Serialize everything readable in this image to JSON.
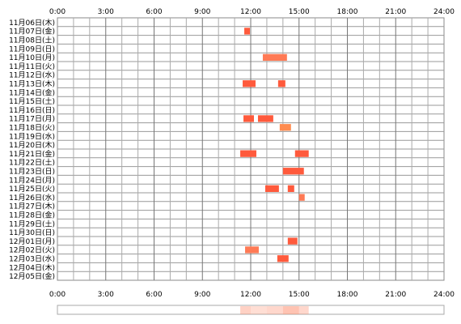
{
  "chart_data": {
    "type": "timeline",
    "x_range": [
      "0:00",
      "24:00"
    ],
    "x_ticks": [
      "0:00",
      "3:00",
      "6:00",
      "9:00",
      "12:00",
      "15:00",
      "18:00",
      "21:00",
      "24:00"
    ],
    "rows": [
      "11月06日(木)",
      "11月07日(金)",
      "11月08日(土)",
      "11月09日(日)",
      "11月10日(月)",
      "11月11日(火)",
      "11月12日(水)",
      "11月13日(木)",
      "11月14日(金)",
      "11月15日(土)",
      "11月16日(日)",
      "11月17日(月)",
      "11月18日(火)",
      "11月19日(水)",
      "11月20日(木)",
      "11月21日(金)",
      "11月22日(土)",
      "11月23日(日)",
      "11月24日(月)",
      "11月25日(火)",
      "11月26日(水)",
      "11月27日(木)",
      "11月28日(金)",
      "11月29日(土)",
      "11月30日(日)",
      "12月01日(月)",
      "12月02日(火)",
      "12月03日(水)",
      "12月04日(木)",
      "12月05日(金)"
    ],
    "grid": true,
    "bar_colors": [
      "#ff5a3c",
      "#ff7a55",
      "#ff8c50"
    ],
    "events": [
      {
        "row": 1,
        "start": 11.6,
        "end": 11.95,
        "level": 0
      },
      {
        "row": 4,
        "start": 12.75,
        "end": 14.25,
        "level": 1
      },
      {
        "row": 7,
        "start": 11.5,
        "end": 12.3,
        "level": 0
      },
      {
        "row": 7,
        "start": 13.7,
        "end": 14.15,
        "level": 0
      },
      {
        "row": 11,
        "start": 11.55,
        "end": 12.2,
        "level": 0
      },
      {
        "row": 11,
        "start": 12.45,
        "end": 13.4,
        "level": 0
      },
      {
        "row": 12,
        "start": 13.8,
        "end": 14.5,
        "level": 2
      },
      {
        "row": 15,
        "start": 11.35,
        "end": 12.35,
        "level": 0
      },
      {
        "row": 15,
        "start": 14.75,
        "end": 15.6,
        "level": 0
      },
      {
        "row": 17,
        "start": 14.0,
        "end": 15.3,
        "level": 0
      },
      {
        "row": 19,
        "start": 12.9,
        "end": 13.75,
        "level": 0
      },
      {
        "row": 19,
        "start": 14.3,
        "end": 14.7,
        "level": 0
      },
      {
        "row": 20,
        "start": 15.0,
        "end": 15.35,
        "level": 1
      },
      {
        "row": 25,
        "start": 14.3,
        "end": 14.9,
        "level": 0
      },
      {
        "row": 26,
        "start": 11.65,
        "end": 12.5,
        "level": 1
      },
      {
        "row": 27,
        "start": 13.65,
        "end": 14.35,
        "level": 0
      }
    ],
    "density_strip": [
      {
        "start": 11.35,
        "end": 12.0,
        "intensity": 0.35
      },
      {
        "start": 12.0,
        "end": 13.0,
        "intensity": 0.25
      },
      {
        "start": 13.0,
        "end": 14.0,
        "intensity": 0.3
      },
      {
        "start": 14.0,
        "end": 15.0,
        "intensity": 0.45
      },
      {
        "start": 15.0,
        "end": 15.6,
        "intensity": 0.3
      }
    ]
  }
}
